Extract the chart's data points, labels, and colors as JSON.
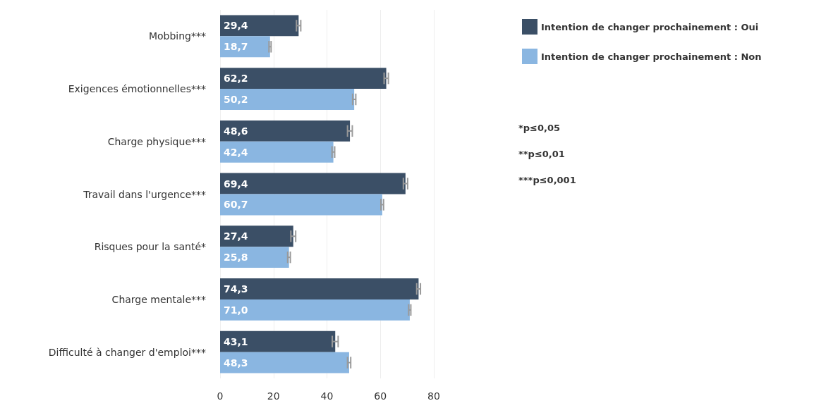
{
  "chart_data": {
    "type": "bar",
    "orientation": "horizontal",
    "categories": [
      "Mobbing***",
      "Exigences émotionnelles***",
      "Charge physique***",
      "Travail dans l'urgence***",
      "Risques pour la santé*",
      "Charge mentale***",
      "Difficulté à changer d'emploi***"
    ],
    "series": [
      {
        "name": "Intention de changer prochainement : Oui",
        "color": "#3b4f66",
        "values": [
          29.4,
          62.2,
          48.6,
          69.4,
          27.4,
          74.3,
          43.1
        ],
        "value_labels": [
          "29,4",
          "62,2",
          "48,6",
          "69,4",
          "27,4",
          "74,3",
          "43,1"
        ],
        "errors": [
          0.8,
          0.8,
          0.9,
          0.8,
          0.9,
          0.7,
          1.1
        ]
      },
      {
        "name": "Intention de changer prochainement : Non",
        "color": "#8ab6e1",
        "values": [
          18.7,
          50.2,
          42.4,
          60.7,
          25.8,
          71.0,
          48.3
        ],
        "value_labels": [
          "18,7",
          "50,2",
          "42,4",
          "60,7",
          "25,8",
          "71,0",
          "48,3"
        ],
        "errors": [
          0.4,
          0.6,
          0.5,
          0.5,
          0.5,
          0.4,
          0.6
        ]
      }
    ],
    "xlim": [
      0,
      80
    ],
    "xticks": [
      0,
      20,
      40,
      60,
      80
    ],
    "grid": "x",
    "legend": "top right",
    "annotations": [
      "*p≤0,05",
      "**p≤0,01",
      "***p≤0,001"
    ]
  }
}
